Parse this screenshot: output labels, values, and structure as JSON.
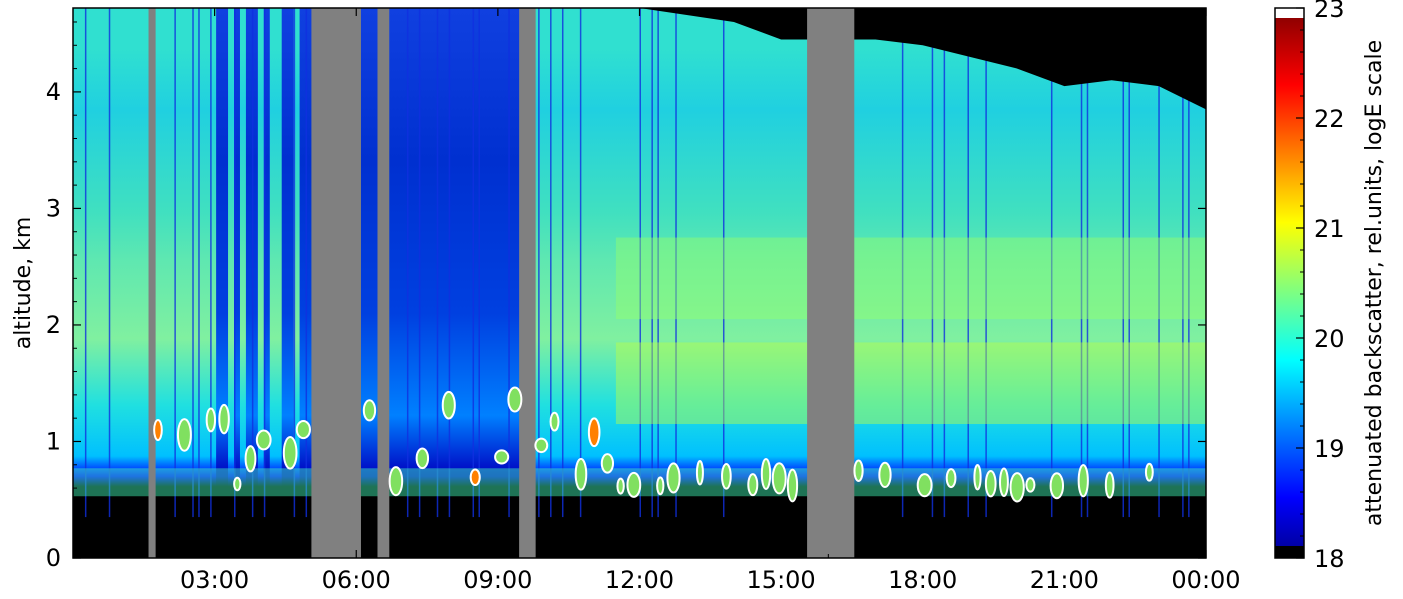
{
  "chart_data": {
    "type": "heatmap",
    "title": "",
    "xlabel": "",
    "ylabel": "altitude, km",
    "x_tick_labels": [
      "03:00",
      "06:00",
      "09:00",
      "12:00",
      "15:00",
      "18:00",
      "21:00",
      "00:00"
    ],
    "x_range_hours": [
      0,
      24
    ],
    "y_tick_labels": [
      "0",
      "1",
      "2",
      "3",
      "4"
    ],
    "ylim": [
      0,
      4.72
    ],
    "colorbar": {
      "label": "attenuated backscatter, rel.units, logE scale",
      "tick_labels": [
        "18",
        "19",
        "20",
        "21",
        "22",
        "23"
      ],
      "range": [
        18,
        23
      ],
      "colormap": "jet",
      "over_color": "#ffffff",
      "under_color": "#000000"
    },
    "no_data_color": "#808080",
    "no_data_intervals_hours": [
      [
        1.6,
        1.75
      ],
      [
        5.05,
        6.1
      ],
      [
        6.45,
        6.7
      ],
      [
        9.45,
        9.8
      ],
      [
        15.55,
        16.55
      ]
    ],
    "below_range_altitude_km": 0.35,
    "layers": [
      {
        "name": "boundary_layer_top",
        "altitude_km": 0.65,
        "value": 20.2
      },
      {
        "name": "aerosol_layer",
        "altitude_km": 1.5,
        "value": 20.8
      },
      {
        "name": "upper_layer",
        "altitude_km": 2.4,
        "value": 20.6
      }
    ],
    "cloud_base_altitude_km": 0.6,
    "signal_top_altitude_km": [
      [
        0,
        4.72
      ],
      [
        8,
        4.72
      ],
      [
        12,
        4.72
      ],
      [
        14,
        4.6
      ],
      [
        15,
        4.45
      ],
      [
        17,
        4.45
      ],
      [
        18,
        4.4
      ],
      [
        20,
        4.2
      ],
      [
        21,
        4.05
      ],
      [
        22,
        4.1
      ],
      [
        23,
        4.05
      ],
      [
        24,
        3.85
      ]
    ],
    "grid": false,
    "legend": "colorbar-right"
  }
}
